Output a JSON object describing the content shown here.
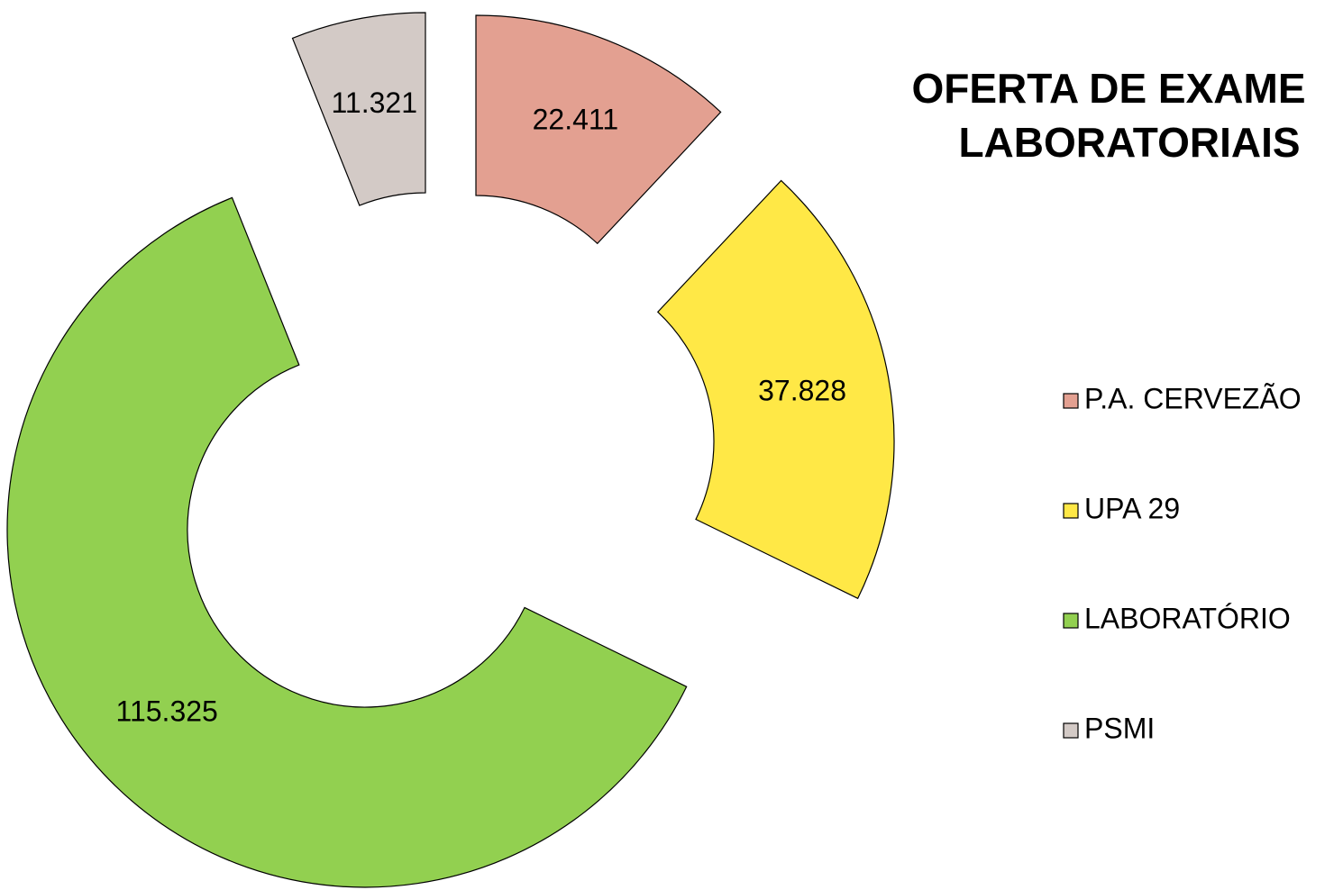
{
  "chart_data": {
    "type": "donut",
    "title": [
      "OFERTA DE EXAME",
      "LABORATORIAIS"
    ],
    "categories": [
      "P.A. CERVEZÃO",
      "UPA 29",
      "LABORATÓRIO",
      "PSMI"
    ],
    "values": [
      22411,
      37828,
      115325,
      11321
    ],
    "value_labels": [
      "22.411",
      "37.828",
      "115.325",
      "11.321"
    ],
    "colors": [
      "#e3a091",
      "#ffe846",
      "#92d050",
      "#d3cac6"
    ],
    "legend": "right"
  }
}
